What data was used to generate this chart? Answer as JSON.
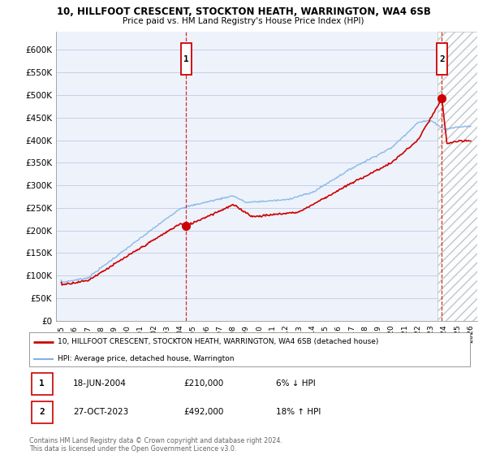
{
  "title1": "10, HILLFOOT CRESCENT, STOCKTON HEATH, WARRINGTON, WA4 6SB",
  "title2": "Price paid vs. HM Land Registry's House Price Index (HPI)",
  "ylabel_ticks": [
    "£0",
    "£50K",
    "£100K",
    "£150K",
    "£200K",
    "£250K",
    "£300K",
    "£350K",
    "£400K",
    "£450K",
    "£500K",
    "£550K",
    "£600K"
  ],
  "ytick_vals": [
    0,
    50000,
    100000,
    150000,
    200000,
    250000,
    300000,
    350000,
    400000,
    450000,
    500000,
    550000,
    600000
  ],
  "ylim": [
    0,
    640000
  ],
  "xlim_start": 1994.6,
  "xlim_end": 2026.5,
  "xtick_labels": [
    "1995",
    "1996",
    "1997",
    "1998",
    "1999",
    "2000",
    "2001",
    "2002",
    "2003",
    "2004",
    "2005",
    "2006",
    "2007",
    "2008",
    "2009",
    "2010",
    "2011",
    "2012",
    "2013",
    "2014",
    "2015",
    "2016",
    "2017",
    "2018",
    "2019",
    "2020",
    "2021",
    "2022",
    "2023",
    "2024",
    "2025",
    "2026"
  ],
  "bg_color": "#eef2fb",
  "grid_color": "#c5cfe8",
  "hpi_color": "#7fb3e8",
  "price_color": "#cc0000",
  "sale1_x": 2004.46,
  "sale1_y": 210000,
  "sale2_x": 2023.82,
  "sale2_y": 492000,
  "hatch_start": 2023.5,
  "legend_label1": "10, HILLFOOT CRESCENT, STOCKTON HEATH, WARRINGTON, WA4 6SB (detached house)",
  "legend_label2": "HPI: Average price, detached house, Warrington",
  "annotation1_label": "1",
  "annotation1_date": "18-JUN-2004",
  "annotation1_price": "£210,000",
  "annotation1_pct": "6% ↓ HPI",
  "annotation2_label": "2",
  "annotation2_date": "27-OCT-2023",
  "annotation2_price": "£492,000",
  "annotation2_pct": "18% ↑ HPI",
  "footer": "Contains HM Land Registry data © Crown copyright and database right 2024.\nThis data is licensed under the Open Government Licence v3.0."
}
